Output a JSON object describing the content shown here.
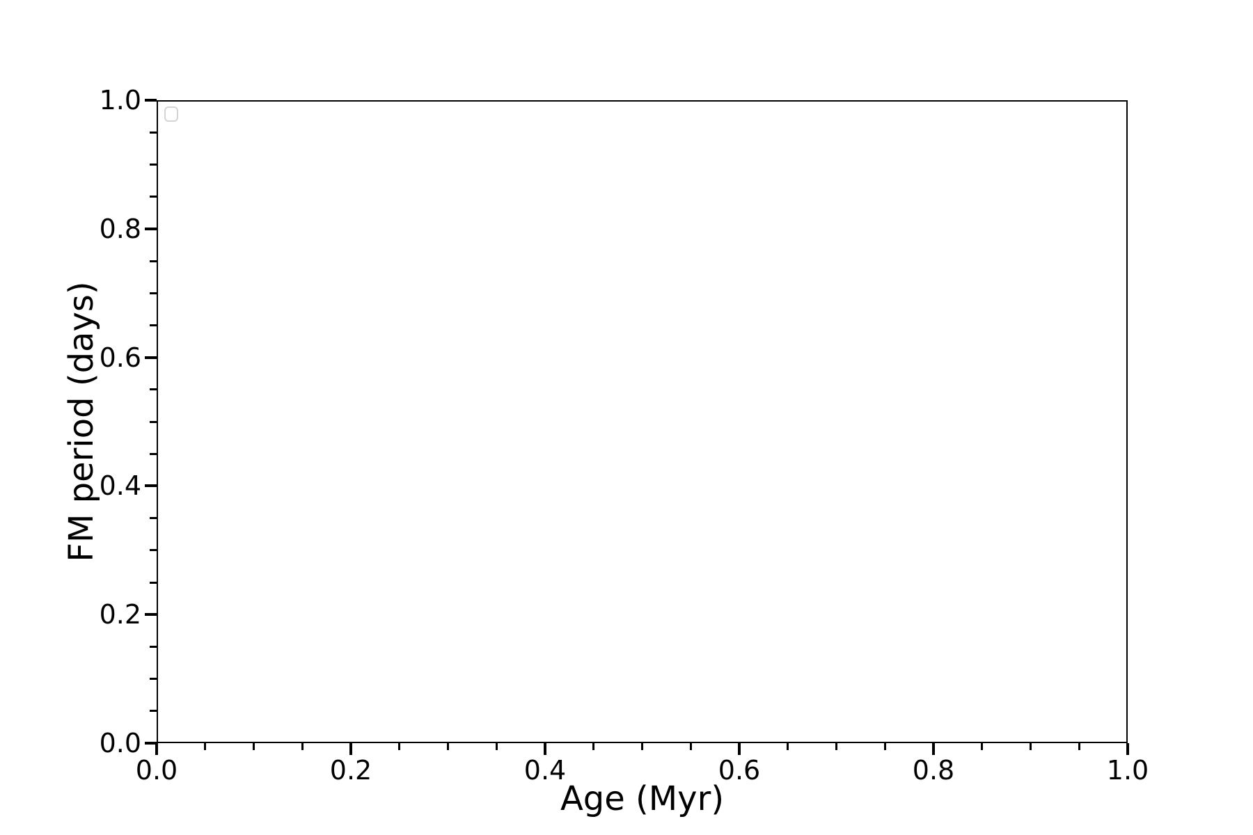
{
  "chart_data": {
    "type": "scatter",
    "title": "",
    "xlabel": "Age (Myr)",
    "ylabel": "FM period (days)",
    "xlim": [
      0.0,
      1.0
    ],
    "ylim": [
      0.0,
      1.0
    ],
    "xticks": [
      0.0,
      0.2,
      0.4,
      0.6,
      0.8,
      1.0
    ],
    "yticks": [
      0.0,
      0.2,
      0.4,
      0.6,
      0.8,
      1.0
    ],
    "xtick_labels": [
      "0.0",
      "0.2",
      "0.4",
      "0.6",
      "0.8",
      "1.0"
    ],
    "ytick_labels": [
      "0.0",
      "0.2",
      "0.4",
      "0.6",
      "0.8",
      "1.0"
    ],
    "minor_ticks_per_interval": 3,
    "tick_direction": "out",
    "grid": false,
    "series": [],
    "legend": {
      "visible": true,
      "entries": [],
      "position": "upper left"
    },
    "colors": {
      "axes": "#000000",
      "text": "#000000",
      "background": "#ffffff",
      "legend_border": "#d4d4d4"
    }
  }
}
